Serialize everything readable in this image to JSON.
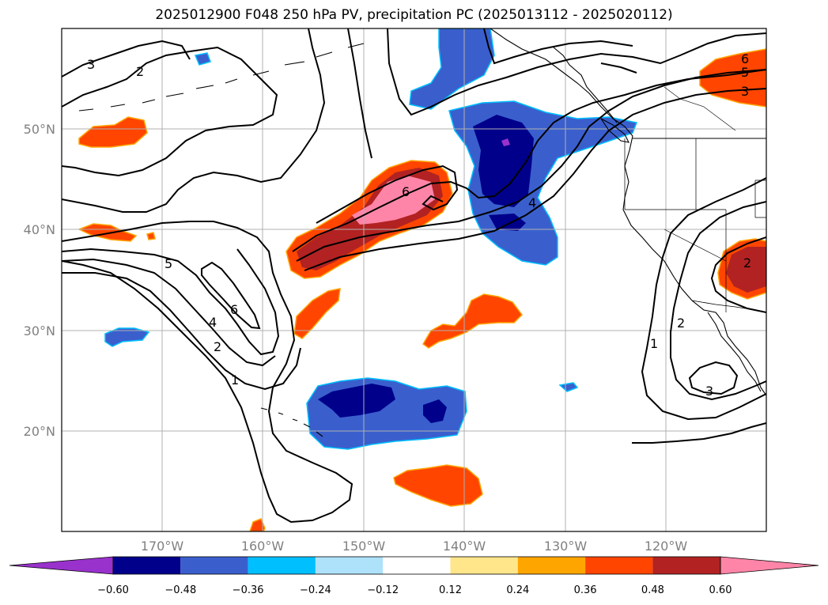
{
  "title": "2025012900 F048 250 hPa PV, precipitation PC (2025013112 - 2025020112)",
  "latitude_labels": [
    "50°N",
    "40°N",
    "30°N",
    "20°N"
  ],
  "longitude_labels": [
    "170°W",
    "160°W",
    "150°W",
    "140°W",
    "130°W",
    "120°W"
  ],
  "colorbar": {
    "tick_labels": [
      "−0.60",
      "−0.48",
      "−0.36",
      "−0.24",
      "−0.12",
      "0.12",
      "0.24",
      "0.36",
      "0.48",
      "0.60"
    ],
    "colors": [
      "#9932cc",
      "#00008b",
      "#3a5fcd",
      "#00bfff",
      "#aee2fa",
      "#ffffff",
      "#ffe68a",
      "#ffa500",
      "#ff4500",
      "#b22222",
      "#ff85a8"
    ]
  },
  "pv_contour_labels": [
    "3",
    "2",
    "6",
    "5",
    "3",
    "6",
    "4",
    "5",
    "6",
    "4",
    "2",
    "1",
    "2",
    "2",
    "1",
    "3"
  ],
  "colors": {
    "grid": "#b0b0b0",
    "contour": "#000000",
    "coast": "#000000"
  }
}
